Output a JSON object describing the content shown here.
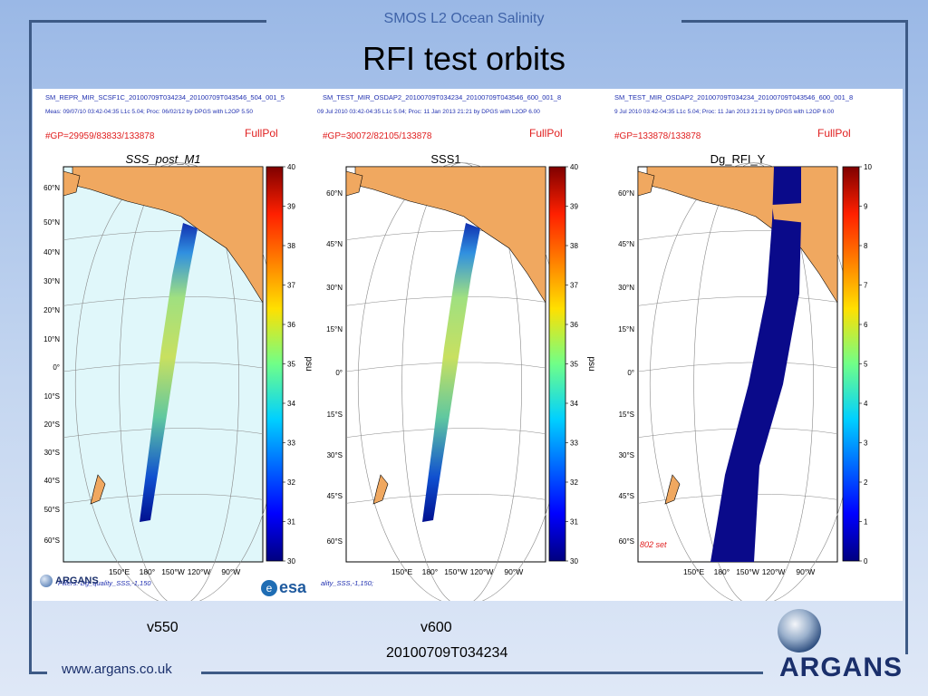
{
  "slide": {
    "header": "SMOS L2 Ocean Salinity",
    "title": "RFI test orbits",
    "version_left": "v550",
    "version_right": "v600",
    "orbit_id": "20100709T034234",
    "footer_url": "www.argans.co.uk",
    "logo_text": "ARGANS"
  },
  "plots": [
    {
      "file": "SM_REPR_MIR_SCSF1C_20100709T034234_20100709T043546_504_001_5",
      "meta": "Meas: 09/07/10 03:42-04:35 L1c 5.04; Proc: 06/02/12 by DPGS with L2OP 5.50",
      "gp": "#GP=29959/83833/133878",
      "pol": "FullPol",
      "map_title": "SSS_post_M1",
      "cbar_unit": "psu",
      "cbar_ticks": [
        "40",
        "39",
        "38",
        "37",
        "36",
        "35",
        "34",
        "33",
        "32",
        "31",
        "30"
      ],
      "lat_labels": [
        "60°N",
        "50°N",
        "40°N",
        "30°N",
        "20°N",
        "10°N",
        "0°",
        "10°S",
        "20°S",
        "30°S",
        "40°S",
        "50°S",
        "60°S"
      ],
      "lon_labels": [
        "150°E",
        "180°",
        "150°W",
        "120°W",
        "90°W"
      ],
      "filter": "Filters: Dg_quality_SSS,-1,150"
    },
    {
      "file": "SM_TEST_MIR_OSDAP2_20100709T034234_20100709T043546_600_001_8",
      "meta": "09 Jul 2010 03:42-04:35 L1c 5.04; Proc: 11 Jan 2013 21:21 by DPGS with L2OP 6.00",
      "gp": "#GP=30072/82105/133878",
      "pol": "FullPol",
      "map_title": "SSS1",
      "cbar_unit": "psu",
      "cbar_ticks": [
        "40",
        "39",
        "38",
        "37",
        "36",
        "35",
        "34",
        "33",
        "32",
        "31",
        "30"
      ],
      "lat_labels": [
        "60°N",
        "45°N",
        "30°N",
        "15°N",
        "0°",
        "15°S",
        "30°S",
        "45°S",
        "60°S"
      ],
      "lon_labels": [
        "150°E",
        "180°",
        "150°W",
        "120°W",
        "90°W"
      ],
      "filter": "ality_SSS,-1,150;"
    },
    {
      "file": "SM_TEST_MIR_OSDAP2_20100709T034234_20100709T043546_600_001_8",
      "meta": "9 Jul 2010 03:42-04:35 L1c 5.04; Proc: 11 Jan 2013 21:21 by DPGS with L2OP 6.00",
      "gp": "#GP=133878/133878",
      "pol": "FullPol",
      "map_title": "Dg_RFI_Y",
      "cbar_unit": "",
      "cbar_ticks": [
        "10",
        "9",
        "8",
        "7",
        "6",
        "5",
        "4",
        "3",
        "2",
        "1",
        "0"
      ],
      "lat_labels": [
        "60°N",
        "45°N",
        "30°N",
        "15°N",
        "0°",
        "15°S",
        "30°S",
        "45°S",
        "60°S"
      ],
      "lon_labels": [
        "150°E",
        "180°",
        "150°W",
        "120°W",
        "90°W"
      ],
      "annotation": "802 set"
    }
  ],
  "panel_logos": {
    "argans": "ARGANS",
    "esa": "esa"
  },
  "colors": {
    "header": "#3f63a8",
    "frame": "#3d5a86",
    "land": "#f0a860",
    "ocean_m1": "#e0f7fa",
    "rfi_swath": "#0a0a8a",
    "fullpol": "#e02020"
  }
}
